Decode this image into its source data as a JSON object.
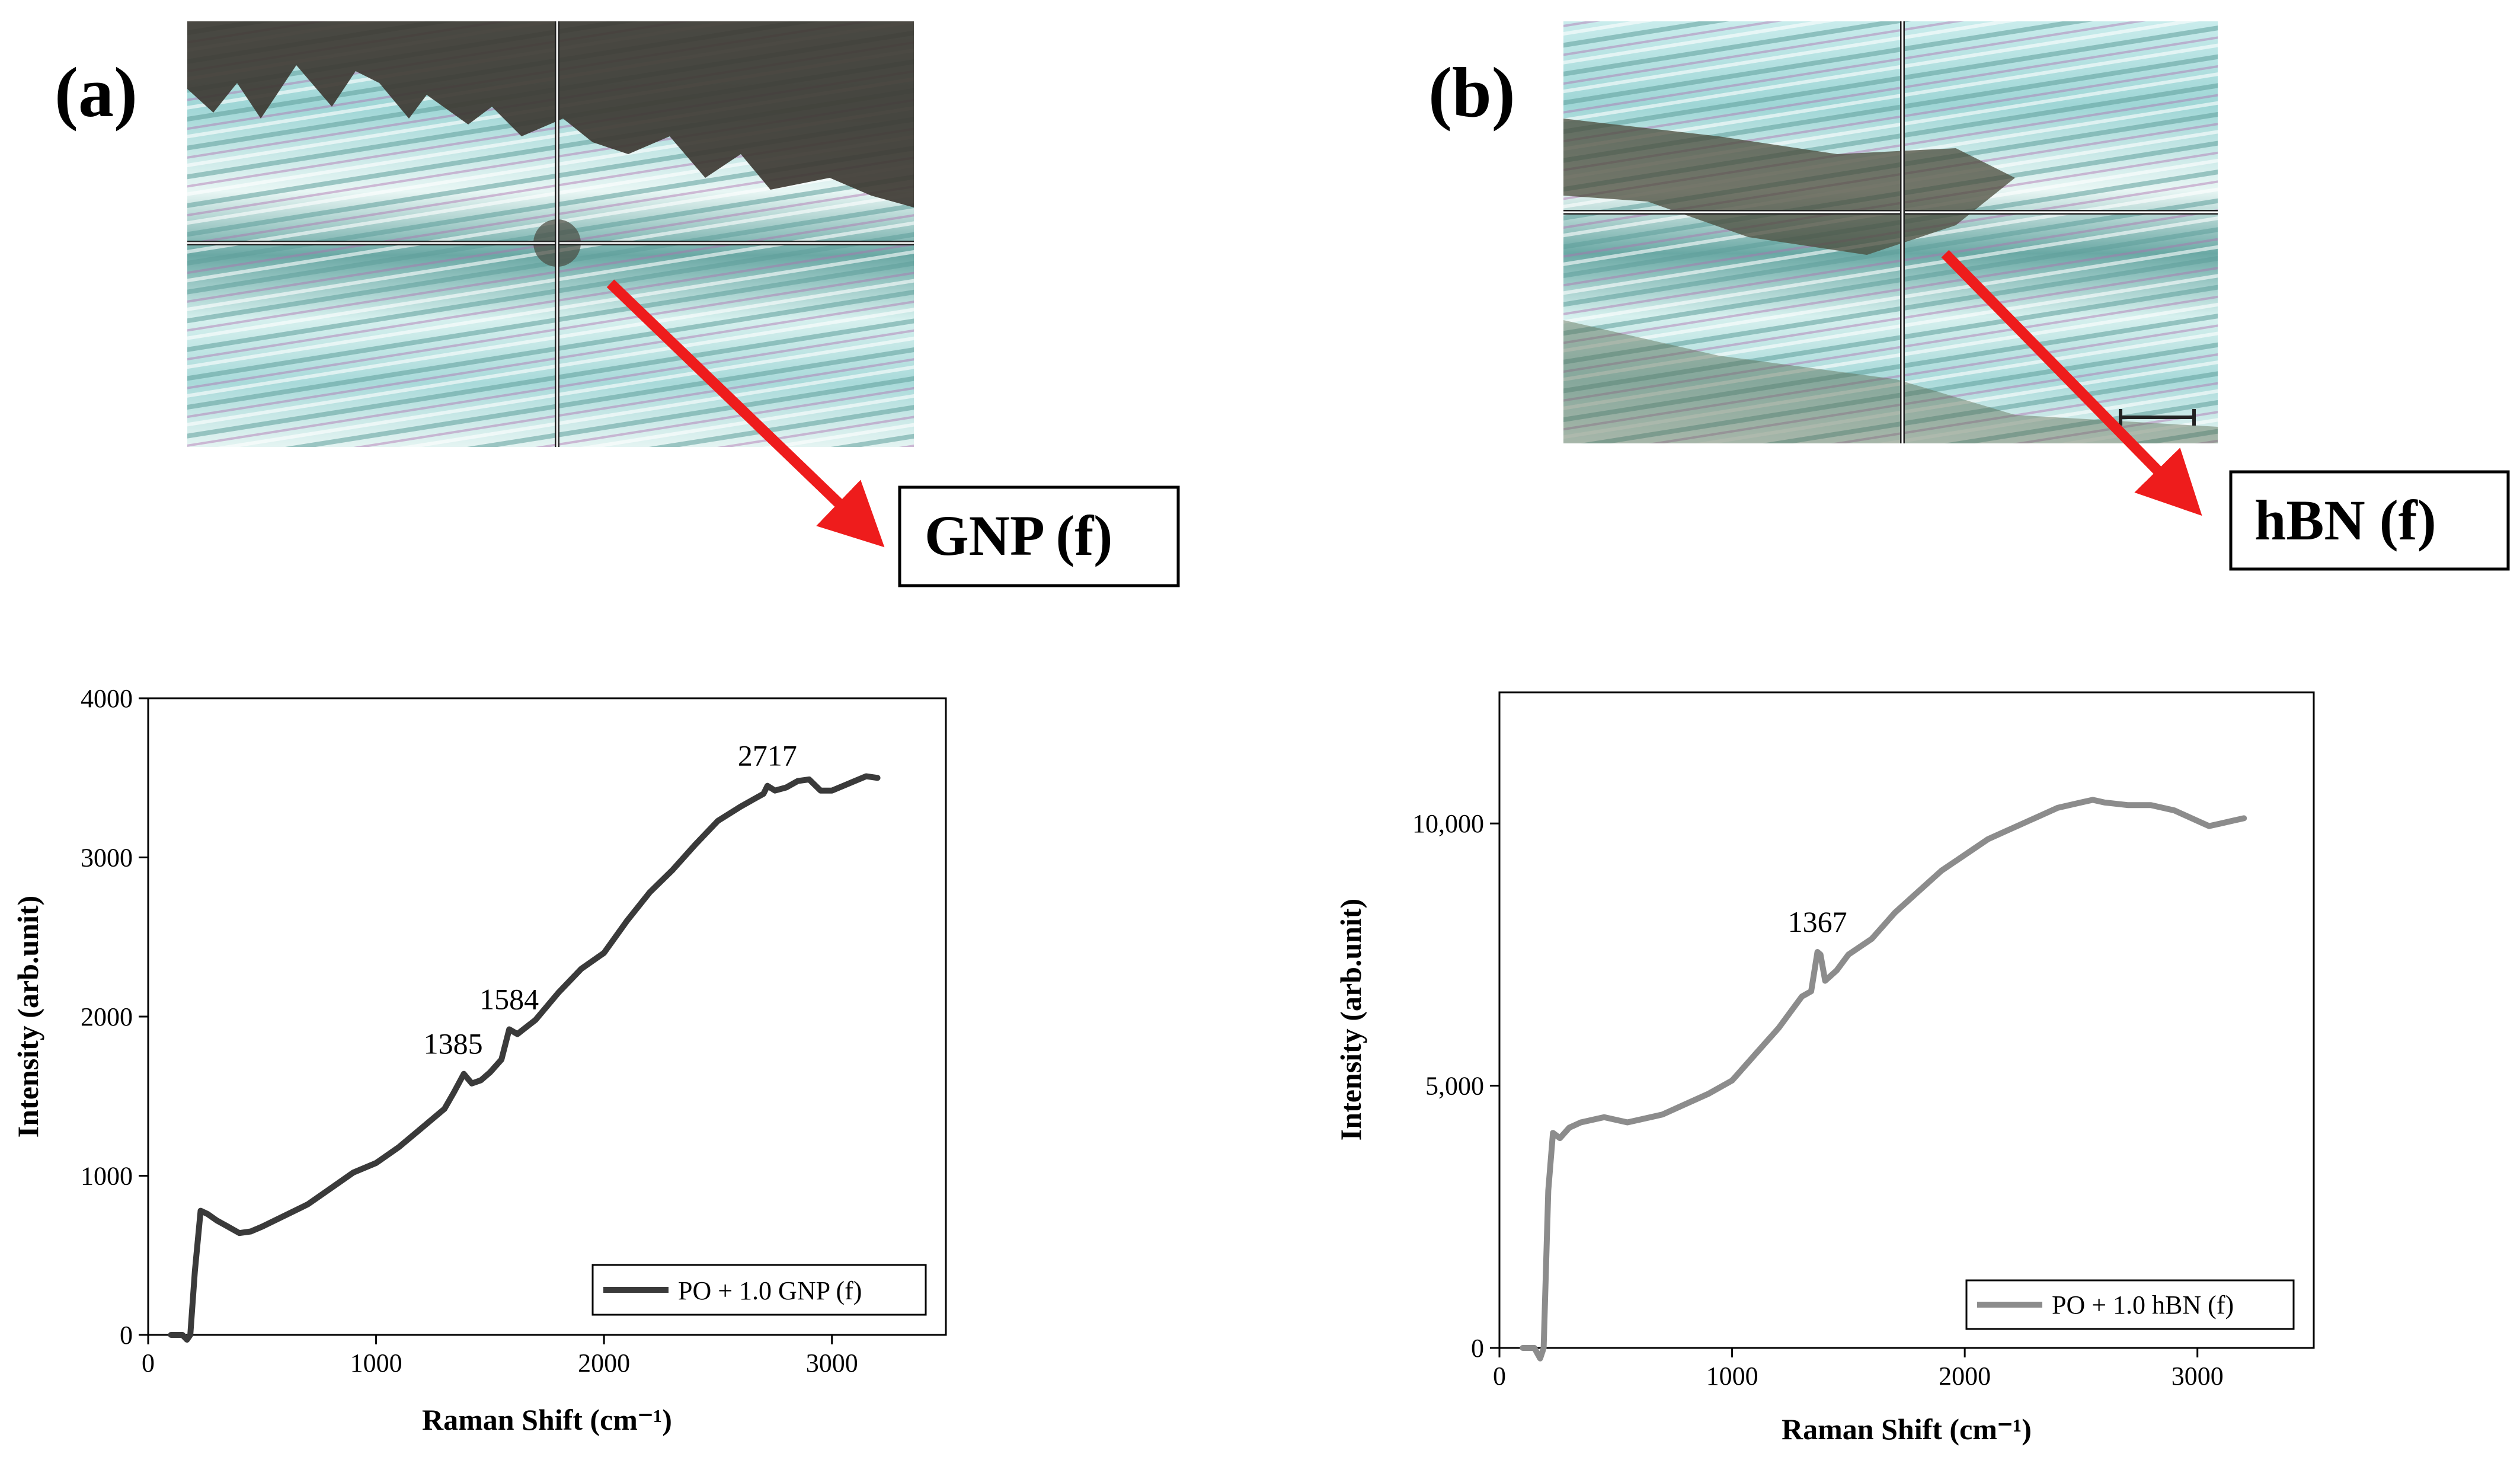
{
  "panels": [
    {
      "label": "(a)",
      "tag": "GNP (f)"
    },
    {
      "label": "(b)",
      "tag": "hBN (f)"
    }
  ],
  "colors": {
    "arrow": "#ee1c1c",
    "series_a": "#3a3a3a",
    "series_b": "#8c8c8c"
  },
  "chart_data": [
    {
      "type": "line",
      "title": "",
      "xlabel": "Raman Shift (cm⁻¹)",
      "ylabel": "Intensity (arb.unit)",
      "xlim": [
        0,
        3500
      ],
      "ylim": [
        0,
        4000
      ],
      "xticks": [
        0,
        1000,
        2000,
        3000
      ],
      "yticks": [
        0,
        1000,
        2000,
        3000,
        4000
      ],
      "ytick_labels": [
        "0",
        "1000",
        "2000",
        "3000",
        "4000"
      ],
      "legend": "bottom-right",
      "series": [
        {
          "name": "PO + 1.0 GNP (f)",
          "color": "#3a3a3a",
          "x": [
            100,
            150,
            170,
            185,
            205,
            230,
            260,
            300,
            350,
            400,
            450,
            500,
            600,
            700,
            800,
            900,
            1000,
            1100,
            1200,
            1300,
            1340,
            1385,
            1420,
            1460,
            1500,
            1550,
            1584,
            1620,
            1700,
            1800,
            1900,
            2000,
            2100,
            2200,
            2300,
            2400,
            2500,
            2600,
            2650,
            2700,
            2717,
            2750,
            2800,
            2850,
            2900,
            2950,
            3000,
            3050,
            3100,
            3150,
            3200
          ],
          "y": [
            0,
            0,
            -30,
            0,
            400,
            780,
            760,
            720,
            680,
            640,
            650,
            680,
            750,
            820,
            920,
            1020,
            1080,
            1180,
            1300,
            1420,
            1520,
            1640,
            1580,
            1600,
            1650,
            1730,
            1920,
            1890,
            1980,
            2150,
            2300,
            2400,
            2600,
            2780,
            2920,
            3080,
            3230,
            3320,
            3360,
            3400,
            3450,
            3420,
            3440,
            3480,
            3490,
            3420,
            3420,
            3450,
            3480,
            3510,
            3500
          ],
          "annotations": [
            {
              "text": "1385",
              "x": 1385,
              "y": 1640
            },
            {
              "text": "1584",
              "x": 1584,
              "y": 1920
            },
            {
              "text": "2717",
              "x": 2717,
              "y": 3450
            }
          ]
        }
      ]
    },
    {
      "type": "line",
      "title": "",
      "xlabel": "Raman Shift  (cm⁻¹)",
      "ylabel": "Intensity (arb.unit)",
      "xlim": [
        0,
        3500
      ],
      "ylim": [
        0,
        12500
      ],
      "xticks": [
        0,
        1000,
        2000,
        3000
      ],
      "yticks": [
        0,
        5000,
        10000
      ],
      "ytick_labels": [
        "0",
        "5,000",
        "10,000"
      ],
      "legend": "bottom-right",
      "series": [
        {
          "name": "PO + 1.0 hBN (f)",
          "color": "#8c8c8c",
          "x": [
            100,
            150,
            175,
            190,
            210,
            230,
            260,
            300,
            350,
            400,
            450,
            500,
            550,
            600,
            700,
            800,
            900,
            1000,
            1100,
            1200,
            1300,
            1340,
            1367,
            1380,
            1400,
            1450,
            1500,
            1600,
            1700,
            1800,
            1900,
            2000,
            2100,
            2200,
            2300,
            2400,
            2500,
            2550,
            2600,
            2700,
            2800,
            2900,
            3000,
            3050,
            3100,
            3150,
            3200
          ],
          "y": [
            0,
            0,
            -200,
            0,
            3000,
            4100,
            4000,
            4200,
            4300,
            4350,
            4400,
            4350,
            4300,
            4350,
            4450,
            4650,
            4850,
            5100,
            5600,
            6100,
            6700,
            6800,
            7550,
            7500,
            7000,
            7200,
            7500,
            7800,
            8300,
            8700,
            9100,
            9400,
            9700,
            9900,
            10100,
            10300,
            10400,
            10450,
            10400,
            10350,
            10350,
            10250,
            10050,
            9950,
            10000,
            10050,
            10100
          ],
          "annotations": [
            {
              "text": "1367",
              "x": 1367,
              "y": 7550
            }
          ]
        }
      ]
    }
  ]
}
